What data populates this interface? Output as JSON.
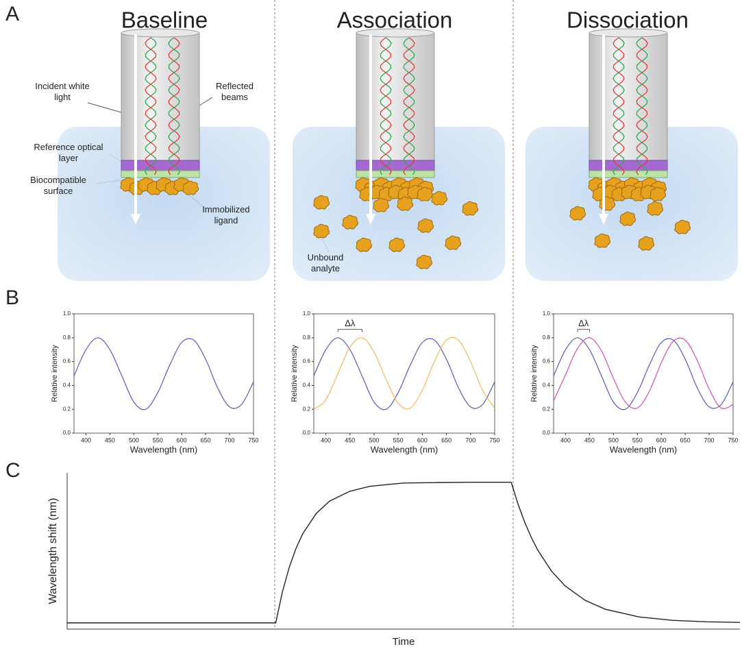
{
  "panel_labels": [
    "A",
    "B",
    "C"
  ],
  "diagram": {
    "columns": [
      {
        "title": "Baseline",
        "labels": [
          "Incident white light",
          "Reflected beams",
          "Reference optical layer",
          "Biocompatible surface",
          "Immobilized ligand"
        ]
      },
      {
        "title": "Association",
        "labels": [
          "Unbound analyte"
        ]
      },
      {
        "title": "Dissociation",
        "labels": []
      }
    ]
  },
  "chart_data": [
    {
      "type": "line",
      "xlabel": "Wavelength (nm)",
      "ylabel": "Relative intensity",
      "x": [
        375,
        400,
        425,
        450,
        475,
        500,
        525,
        550,
        575,
        600,
        625,
        650,
        675,
        700,
        725,
        750
      ],
      "series": [
        {
          "color": "#5a5ab8",
          "values": [
            0.48,
            0.7,
            0.8,
            0.7,
            0.48,
            0.26,
            0.2,
            0.34,
            0.57,
            0.76,
            0.78,
            0.62,
            0.38,
            0.22,
            0.24,
            0.43
          ]
        }
      ],
      "xlim": [
        375,
        750
      ],
      "ylim": [
        0,
        1
      ],
      "xticks": [
        400,
        450,
        500,
        550,
        600,
        650,
        700,
        750
      ],
      "yticks": [
        {
          "value": 0,
          "label": "0.0"
        },
        {
          "value": 0.2,
          "label": "0.2"
        },
        {
          "value": 0.4,
          "label": "0.4"
        },
        {
          "value": 0.6,
          "label": "0.6"
        },
        {
          "value": 0.8,
          "label": "0.8"
        },
        {
          "value": 1,
          "label": "1.0"
        }
      ]
    },
    {
      "type": "line",
      "xlabel": "Wavelength (nm)",
      "ylabel": "Relative intensity",
      "annotation": "Δλ",
      "x": [
        375,
        400,
        425,
        450,
        475,
        500,
        525,
        550,
        575,
        600,
        625,
        650,
        675,
        700,
        725,
        750
      ],
      "series": [
        {
          "color": "#5a5ab8",
          "values": [
            0.48,
            0.7,
            0.8,
            0.7,
            0.48,
            0.26,
            0.2,
            0.34,
            0.57,
            0.76,
            0.78,
            0.62,
            0.38,
            0.22,
            0.24,
            0.43
          ]
        },
        {
          "color": "#f5b55a",
          "values": [
            0.2,
            0.28,
            0.5,
            0.72,
            0.8,
            0.68,
            0.45,
            0.25,
            0.21,
            0.36,
            0.6,
            0.78,
            0.78,
            0.6,
            0.36,
            0.21
          ]
        }
      ],
      "xlim": [
        375,
        750
      ],
      "ylim": [
        0,
        1
      ],
      "xticks": [
        400,
        450,
        500,
        550,
        600,
        650,
        700,
        750
      ],
      "yticks": [
        {
          "value": 0,
          "label": "0.0"
        },
        {
          "value": 0.2,
          "label": "0.2"
        },
        {
          "value": 0.4,
          "label": "0.4"
        },
        {
          "value": 0.6,
          "label": "0.6"
        },
        {
          "value": 0.8,
          "label": "0.8"
        },
        {
          "value": 1,
          "label": "1.0"
        }
      ]
    },
    {
      "type": "line",
      "xlabel": "Wavelength (nm)",
      "ylabel": "Relative intensity",
      "annotation": "Δλ",
      "x": [
        375,
        400,
        425,
        450,
        475,
        500,
        525,
        550,
        575,
        600,
        625,
        650,
        675,
        700,
        725,
        750
      ],
      "series": [
        {
          "color": "#5a5ab8",
          "values": [
            0.48,
            0.7,
            0.8,
            0.7,
            0.48,
            0.26,
            0.2,
            0.34,
            0.57,
            0.76,
            0.78,
            0.62,
            0.38,
            0.22,
            0.24,
            0.43
          ]
        },
        {
          "color": "#d34fb0",
          "values": [
            0.27,
            0.49,
            0.71,
            0.8,
            0.69,
            0.46,
            0.26,
            0.21,
            0.35,
            0.59,
            0.77,
            0.78,
            0.61,
            0.37,
            0.21,
            0.24
          ]
        }
      ],
      "xlim": [
        375,
        750
      ],
      "ylim": [
        0,
        1
      ],
      "xticks": [
        400,
        450,
        500,
        550,
        600,
        650,
        700,
        750
      ],
      "yticks": [
        {
          "value": 0,
          "label": "0.0"
        },
        {
          "value": 0.2,
          "label": "0.2"
        },
        {
          "value": 0.4,
          "label": "0.4"
        },
        {
          "value": 0.6,
          "label": "0.6"
        },
        {
          "value": 0.8,
          "label": "0.8"
        },
        {
          "value": 1,
          "label": "1.0"
        }
      ]
    },
    {
      "type": "line",
      "xlabel": "Time",
      "ylabel": "Wavelength shift (nm)",
      "x": [
        0,
        31,
        32,
        33,
        34,
        35,
        37,
        39,
        42,
        45,
        50,
        55,
        60,
        66,
        67,
        68,
        69,
        70,
        72,
        74,
        77,
        80,
        85,
        90,
        95,
        100
      ],
      "series": [
        {
          "color": "#222222",
          "values": [
            4,
            4,
            23.9,
            39.4,
            51.5,
            60.9,
            73.9,
            81.9,
            88.2,
            91.4,
            93.5,
            93.8,
            94,
            94,
            80.2,
            68.5,
            58.6,
            50.2,
            37.1,
            27.7,
            18.4,
            12.7,
            7.8,
            5.6,
            4.7,
            4.3
          ]
        }
      ],
      "xlim": [
        0,
        100
      ],
      "ylim": [
        0,
        100
      ]
    }
  ]
}
